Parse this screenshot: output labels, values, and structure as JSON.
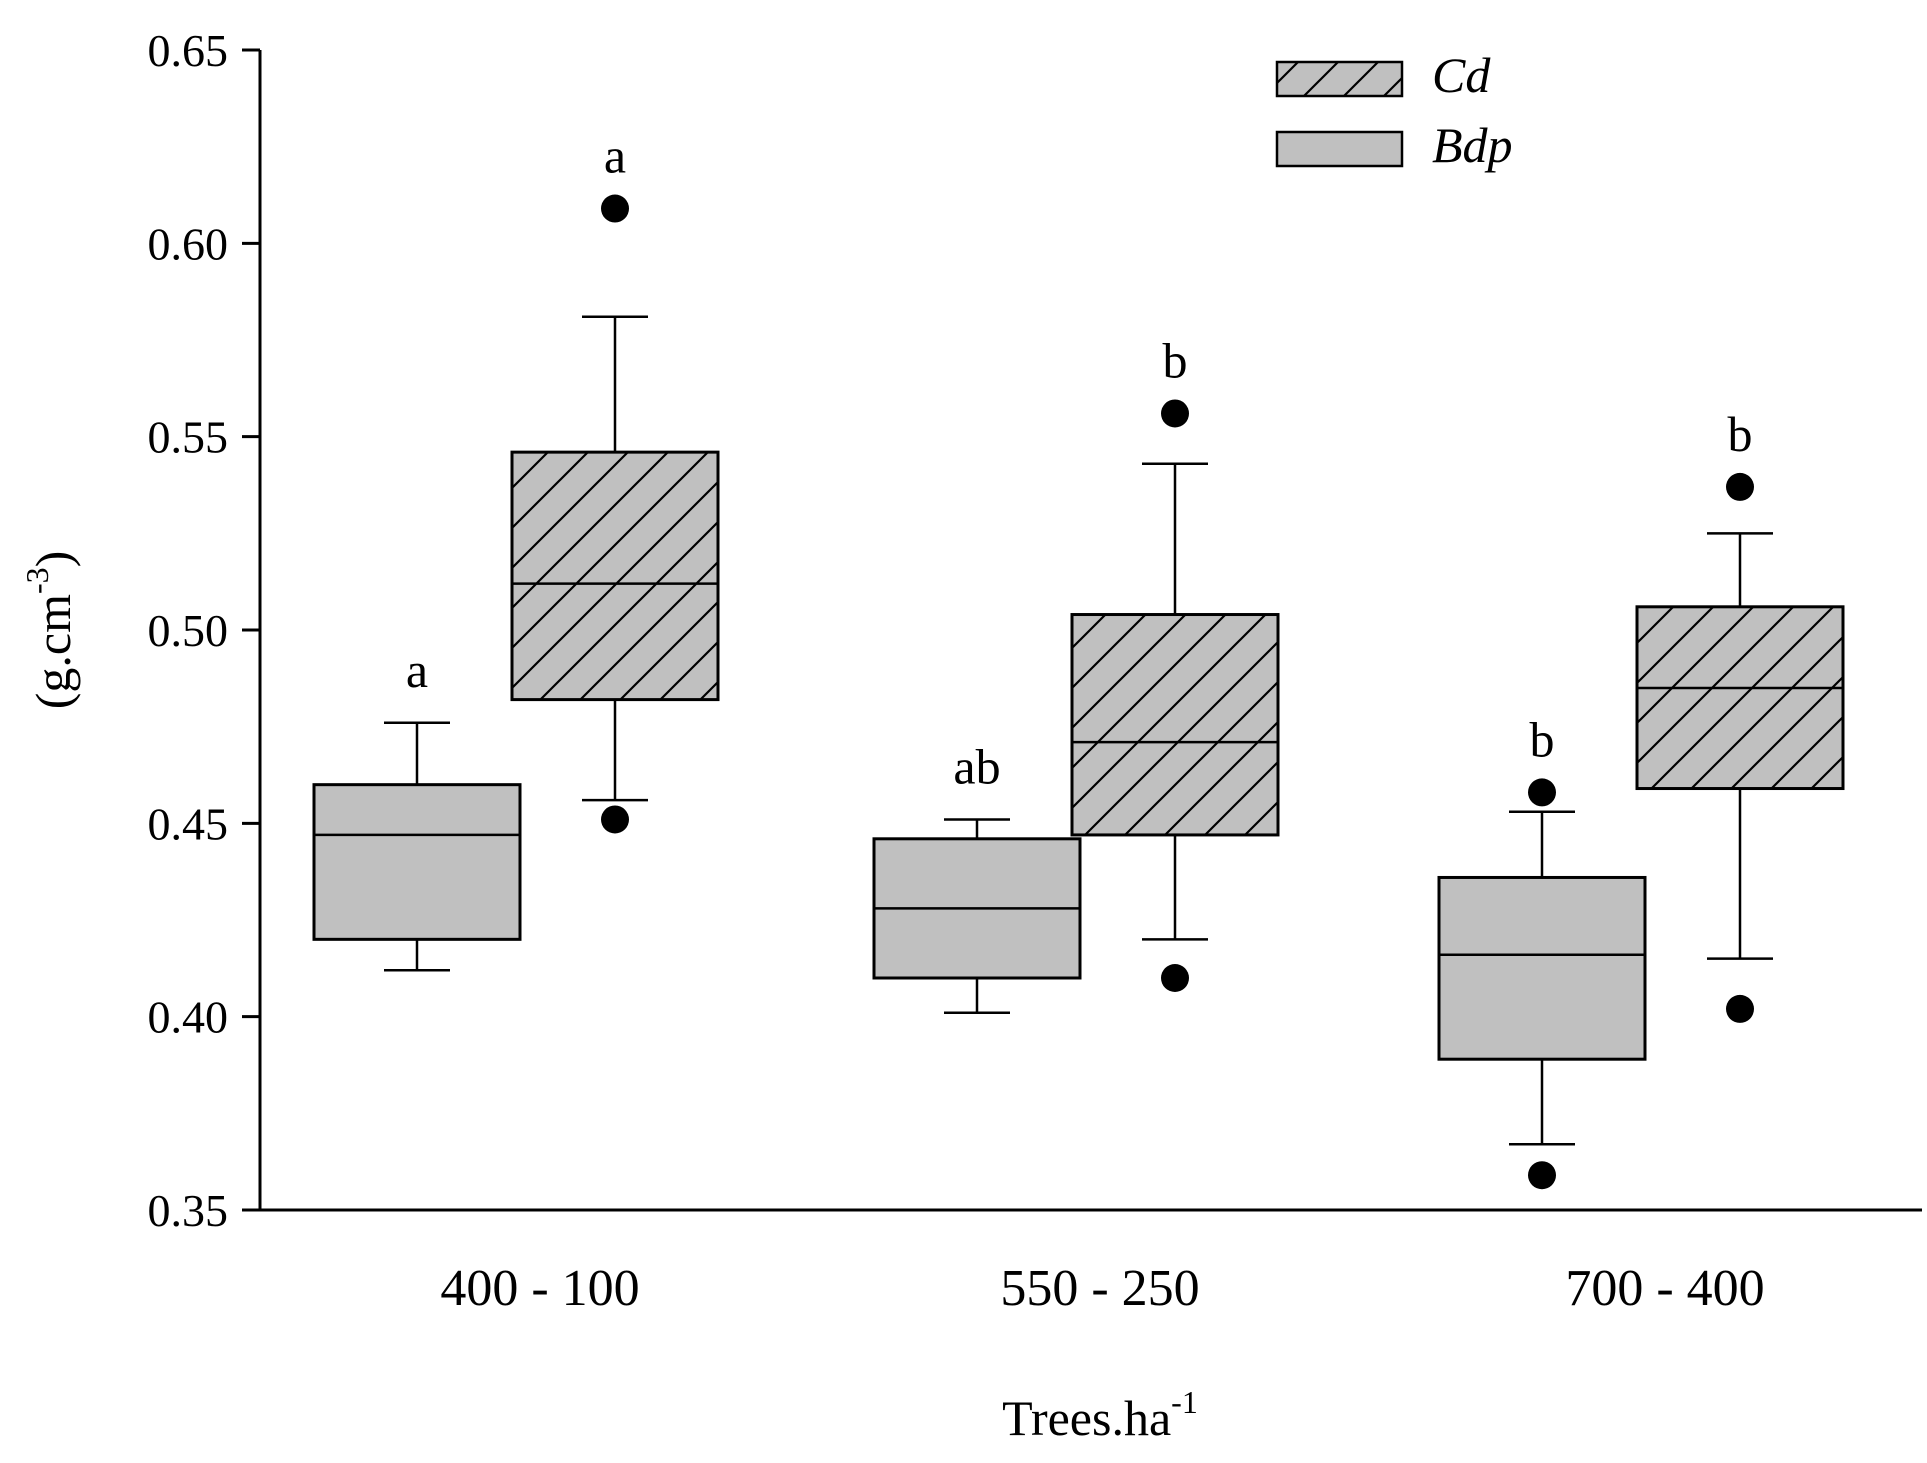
{
  "chart_data": {
    "type": "box",
    "categories": [
      "400 - 100",
      "550 - 250",
      "700 - 400"
    ],
    "xlabel": {
      "base": "Trees.ha",
      "sup": "-1"
    },
    "ylabel": {
      "base": "(g.cm",
      "sup": "-3",
      "close": ")"
    },
    "ylim": [
      0.35,
      0.65
    ],
    "yticks": [
      "0.35",
      "0.40",
      "0.45",
      "0.50",
      "0.55",
      "0.60",
      "0.65"
    ],
    "grid": false,
    "legend_position": "top-right",
    "series": [
      {
        "name": "Cd",
        "fill": "#c0c0c0",
        "pattern": "diagonal-hatch",
        "boxes": [
          {
            "whisker_low": 0.456,
            "q1": 0.482,
            "median": 0.512,
            "q3": 0.546,
            "whisker_high": 0.581,
            "outliers": [
              0.609,
              0.451
            ],
            "letter": "a"
          },
          {
            "whisker_low": 0.42,
            "q1": 0.447,
            "median": 0.471,
            "q3": 0.504,
            "whisker_high": 0.543,
            "outliers": [
              0.556,
              0.41
            ],
            "letter": "b"
          },
          {
            "whisker_low": 0.415,
            "q1": 0.459,
            "median": 0.485,
            "q3": 0.506,
            "whisker_high": 0.525,
            "outliers": [
              0.537,
              0.402
            ],
            "letter": "b"
          }
        ]
      },
      {
        "name": "Bdp",
        "fill": "#c0c0c0",
        "pattern": "solid",
        "boxes": [
          {
            "whisker_low": 0.412,
            "q1": 0.42,
            "median": 0.447,
            "q3": 0.46,
            "whisker_high": 0.476,
            "outliers": [],
            "letter": "a"
          },
          {
            "whisker_low": 0.401,
            "q1": 0.41,
            "median": 0.428,
            "q3": 0.446,
            "whisker_high": 0.451,
            "outliers": [],
            "letter": "ab"
          },
          {
            "whisker_low": 0.367,
            "q1": 0.389,
            "median": 0.416,
            "q3": 0.436,
            "whisker_high": 0.453,
            "outliers": [
              0.458,
              0.359
            ],
            "letter": "b"
          }
        ]
      }
    ]
  }
}
